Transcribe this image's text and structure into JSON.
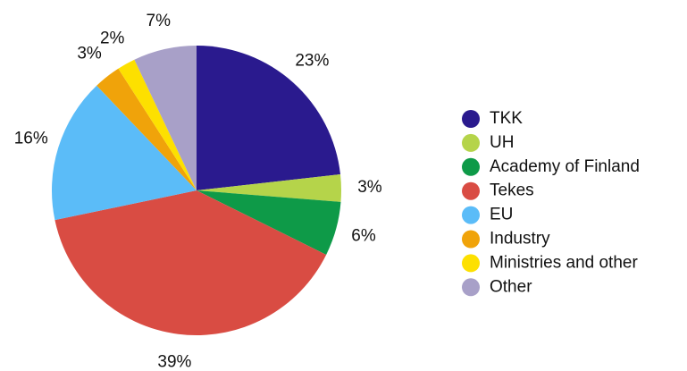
{
  "chart_data": {
    "type": "pie",
    "categories": [
      "TKK",
      "UH",
      "Academy of Finland",
      "Tekes",
      "EU",
      "Industry",
      "Ministries and other",
      "Other"
    ],
    "values": [
      23,
      3,
      6,
      39,
      16,
      3,
      2,
      7
    ],
    "value_labels": [
      "23%",
      "3%",
      "6%",
      "39%",
      "16%",
      "3%",
      "2%",
      "7%"
    ],
    "colors": [
      "#2a1a8e",
      "#b5d44a",
      "#0e9a48",
      "#d94c43",
      "#5bbcf8",
      "#f0a30a",
      "#fde000",
      "#a8a0c8"
    ],
    "legend": "right"
  }
}
